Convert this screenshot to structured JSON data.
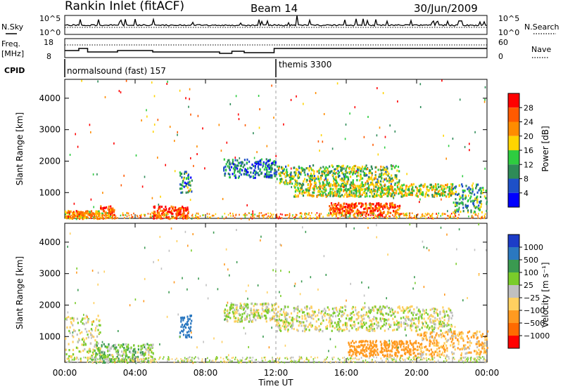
{
  "header": {
    "station": "Rankin Inlet (fitACF)",
    "beam": "Beam 14",
    "date": "30/Jun/2009"
  },
  "top_panels": {
    "nsky_label": "N.Sky",
    "nsearch_label": "N.Search",
    "freq_label_1": "Freq.",
    "freq_label_2": "[MHz]",
    "nave_label": "Nave",
    "cpid_label": "CPID",
    "sky_ticks": [
      "10^5",
      "10^0"
    ],
    "search_ticks": [
      "10^5",
      "10^0"
    ],
    "freq_ticks": [
      "18",
      "8"
    ],
    "nave_ticks": [
      "60",
      "0"
    ],
    "cpid_segments": [
      {
        "name": "normalsound (fast) 157",
        "start_hour": 0
      },
      {
        "name": "themis 3300",
        "start_hour": 12
      }
    ]
  },
  "axes": {
    "y_label_power": "Slant Range [km]",
    "y_label_velocity": "Slant Range [km]",
    "x_label": "Time UT",
    "x_ticks": [
      "00:00",
      "04:00",
      "08:00",
      "12:00",
      "16:00",
      "20:00",
      "00:00"
    ],
    "y_ticks": [
      "4000",
      "3000",
      "2000",
      "1000"
    ]
  },
  "power_scale": {
    "label": "Power [dB]",
    "ticks": [
      "28",
      "24",
      "20",
      "16",
      "12",
      "8",
      "4"
    ],
    "colors": [
      "#ff0000",
      "#ff5a00",
      "#ff8c00",
      "#ffd400",
      "#2ecc40",
      "#2e8b57",
      "#1e50c8",
      "#0000ff"
    ]
  },
  "velocity_scale": {
    "label": "Velocity [m s⁻¹]",
    "ticks": [
      "1000",
      "500",
      "100",
      "25",
      "−25",
      "−100",
      "−500",
      "−1000"
    ],
    "colors": [
      "#1c3cc8",
      "#2b78c0",
      "#3a9a50",
      "#7acc2a",
      "#c0c0c0",
      "#ffd060",
      "#ff9a20",
      "#ff6a00",
      "#ff0000"
    ]
  },
  "chart_data": [
    {
      "type": "heatmap",
      "title": "Power",
      "xlabel": "Time UT",
      "ylabel": "Slant Range [km]",
      "xlim": [
        0,
        24
      ],
      "ylim": [
        180,
        4600
      ],
      "colorbar_label": "Power [dB]",
      "colorbar_range": [
        0,
        32
      ],
      "regions": [
        {
          "t": [
            0.0,
            2.0
          ],
          "r": [
            200,
            450
          ],
          "level": 22
        },
        {
          "t": [
            2.0,
            2.8
          ],
          "r": [
            200,
            600
          ],
          "level": 26
        },
        {
          "t": [
            5.0,
            7.0
          ],
          "r": [
            200,
            600
          ],
          "level": 28
        },
        {
          "t": [
            6.5,
            7.2
          ],
          "r": [
            1000,
            1700
          ],
          "level": 10
        },
        {
          "t": [
            9.0,
            12.0
          ],
          "r": [
            1500,
            2100
          ],
          "level": 8
        },
        {
          "t": [
            12.0,
            19.0
          ],
          "r": [
            1300,
            1900
          ],
          "level": 14
        },
        {
          "t": [
            13.0,
            22.0
          ],
          "r": [
            900,
            1300
          ],
          "level": 16
        },
        {
          "t": [
            15.0,
            19.0
          ],
          "r": [
            300,
            700
          ],
          "level": 26
        },
        {
          "t": [
            22.0,
            24.0
          ],
          "r": [
            400,
            1300
          ],
          "level": 12
        }
      ]
    },
    {
      "type": "heatmap",
      "title": "Velocity",
      "xlabel": "Time UT",
      "ylabel": "Slant Range [km]",
      "xlim": [
        0,
        24
      ],
      "ylim": [
        180,
        4600
      ],
      "colorbar_label": "Velocity [m s⁻¹]",
      "colorbar_range": [
        -1000,
        1000
      ],
      "regions": [
        {
          "t": [
            0.0,
            2.0
          ],
          "r": [
            300,
            1700
          ],
          "level": 0
        },
        {
          "t": [
            1.5,
            5.0
          ],
          "r": [
            200,
            800
          ],
          "level": 50
        },
        {
          "t": [
            6.5,
            7.2
          ],
          "r": [
            1000,
            1700
          ],
          "level": 800
        },
        {
          "t": [
            9.0,
            12.0
          ],
          "r": [
            1500,
            2100
          ],
          "level": 0
        },
        {
          "t": [
            12.0,
            22.0
          ],
          "r": [
            1200,
            2000
          ],
          "level": 0
        },
        {
          "t": [
            16.0,
            20.0
          ],
          "r": [
            400,
            900
          ],
          "level": -400
        },
        {
          "t": [
            20.0,
            24.0
          ],
          "r": [
            400,
            1200
          ],
          "level": -100
        }
      ]
    }
  ]
}
